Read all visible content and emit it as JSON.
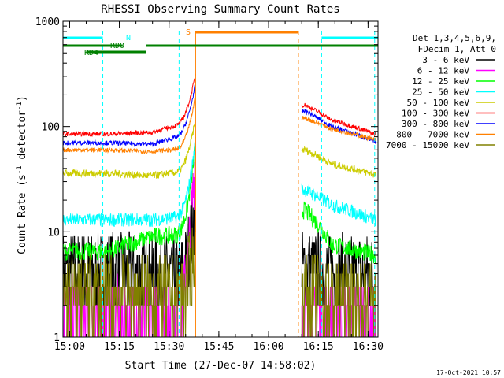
{
  "chart_data": {
    "type": "line",
    "title": "RHESSI Observing Summary Count Rates",
    "xlabel": "Start Time (27-Dec-07 14:58:02)",
    "ylabel_main": "Count Rate (s",
    "ylabel_sup1": "-1",
    "ylabel_mid": " detector",
    "ylabel_sup2": "-1",
    "ylabel_end": ")",
    "y_scale": "log",
    "ylim": [
      1,
      1000
    ],
    "xlim_min": [
      898,
      993
    ],
    "x_ticks": [
      {
        "t": 900,
        "label": "15:00"
      },
      {
        "t": 915,
        "label": "15:15"
      },
      {
        "t": 930,
        "label": "15:30"
      },
      {
        "t": 945,
        "label": "15:45"
      },
      {
        "t": 960,
        "label": "16:00"
      },
      {
        "t": 975,
        "label": "16:15"
      },
      {
        "t": 990,
        "label": "16:30"
      }
    ],
    "y_ticks": [
      {
        "v": 1,
        "label": "1"
      },
      {
        "v": 10,
        "label": "10"
      },
      {
        "v": 100,
        "label": "100"
      },
      {
        "v": 1000,
        "label": "1000"
      }
    ],
    "legend_header": [
      "Det 1,3,4,5,6,9,",
      "FDecim 1, Att 0"
    ],
    "series": [
      {
        "name": "3 - 6 keV",
        "color": "#000000",
        "pre": [
          {
            "t": 912,
            "v": 4.2
          },
          {
            "t": 925,
            "v": 4.0
          },
          {
            "t": 936,
            "v": 3.5
          }
        ],
        "post": [
          {
            "t": 971,
            "v": 4.5
          },
          {
            "t": 979,
            "v": 4.0
          }
        ],
        "noise": 0.9,
        "flare_peak": 20,
        "gap_floor": true
      },
      {
        "name": "6 - 12 keV",
        "color": "#ff00ff",
        "pre": [
          {
            "t": 912,
            "v": 1.6
          },
          {
            "t": 925,
            "v": 1.5
          },
          {
            "t": 936,
            "v": 1.5
          }
        ],
        "post": [
          {
            "t": 971,
            "v": 1.6
          },
          {
            "t": 979,
            "v": 1.5
          }
        ],
        "noise": 0.8,
        "flare_peak": 60,
        "gap_floor": true
      },
      {
        "name": "12 - 25 keV",
        "color": "#00ff00",
        "pre": [
          {
            "t": 912,
            "v": 6.5
          },
          {
            "t": 925,
            "v": 9.0
          },
          {
            "t": 936,
            "v": 9.5
          }
        ],
        "post": [
          {
            "t": 971,
            "v": 16
          },
          {
            "t": 979,
            "v": 7.5
          },
          {
            "t": 992,
            "v": 6.0
          }
        ],
        "noise": 0.2,
        "flare_peak": 70
      },
      {
        "name": "25 - 50 keV",
        "color": "#00ffff",
        "pre": [
          {
            "t": 912,
            "v": 13
          },
          {
            "t": 925,
            "v": 13
          },
          {
            "t": 936,
            "v": 14
          }
        ],
        "post": [
          {
            "t": 971,
            "v": 25
          },
          {
            "t": 979,
            "v": 18
          },
          {
            "t": 992,
            "v": 13
          }
        ],
        "noise": 0.15,
        "flare_peak": 75
      },
      {
        "name": "50 - 100 keV",
        "color": "#cccc00",
        "pre": [
          {
            "t": 912,
            "v": 36
          },
          {
            "t": 925,
            "v": 34
          },
          {
            "t": 936,
            "v": 38
          }
        ],
        "post": [
          {
            "t": 971,
            "v": 60
          },
          {
            "t": 979,
            "v": 44
          },
          {
            "t": 992,
            "v": 35
          }
        ],
        "noise": 0.08,
        "flare_peak": 120
      },
      {
        "name": "100 - 300 keV",
        "color": "#ff0000",
        "pre": [
          {
            "t": 912,
            "v": 85
          },
          {
            "t": 925,
            "v": 88
          },
          {
            "t": 936,
            "v": 110
          }
        ],
        "post": [
          {
            "t": 971,
            "v": 160
          },
          {
            "t": 979,
            "v": 115
          },
          {
            "t": 992,
            "v": 85
          }
        ],
        "noise": 0.05,
        "flare_peak": 320
      },
      {
        "name": "300 - 800 keV",
        "color": "#0000ff",
        "pre": [
          {
            "t": 912,
            "v": 70
          },
          {
            "t": 925,
            "v": 68
          },
          {
            "t": 936,
            "v": 85
          }
        ],
        "post": [
          {
            "t": 971,
            "v": 140
          },
          {
            "t": 979,
            "v": 100
          },
          {
            "t": 992,
            "v": 72
          }
        ],
        "noise": 0.05,
        "flare_peak": 260
      },
      {
        "name": "800 - 7000 keV",
        "color": "#ff8000",
        "pre": [
          {
            "t": 912,
            "v": 60
          },
          {
            "t": 925,
            "v": 58
          },
          {
            "t": 936,
            "v": 62
          }
        ],
        "post": [
          {
            "t": 971,
            "v": 120
          },
          {
            "t": 979,
            "v": 95
          },
          {
            "t": 992,
            "v": 75
          }
        ],
        "noise": 0.05,
        "flare_peak": 200
      },
      {
        "name": "7000 - 15000 keV",
        "color": "#808000",
        "pre": [
          {
            "t": 912,
            "v": 2.5
          },
          {
            "t": 925,
            "v": 2.5
          },
          {
            "t": 936,
            "v": 2.3
          }
        ],
        "post": [
          {
            "t": 971,
            "v": 2.5
          },
          {
            "t": 979,
            "v": 2.3
          }
        ],
        "noise": 0.9,
        "flare_peak": 8,
        "gap_floor": true
      }
    ],
    "data_gap": [
      938,
      970
    ],
    "flare_rise": [
      932,
      938
    ],
    "vlines": [
      {
        "t": 910,
        "color": "#00ffff"
      },
      {
        "t": 933,
        "color": "#00ffff"
      },
      {
        "t": 938,
        "color": "#ff8000",
        "solid": true
      },
      {
        "t": 969,
        "color": "#ff8000"
      },
      {
        "t": 976,
        "color": "#00ffff"
      },
      {
        "t": 992,
        "color": "#00ffff"
      }
    ],
    "flag_bars": [
      {
        "label": "",
        "color": "#00ffff",
        "segments": [
          [
            898,
            910
          ],
          [
            976,
            993
          ]
        ],
        "level": 1
      },
      {
        "label": "N",
        "color": "#00ffff",
        "segments": [],
        "level": 1
      },
      {
        "label": "RD0",
        "color": "#008000",
        "segments": [
          [
            898,
            916
          ],
          [
            923,
            993
          ]
        ],
        "level": 2
      },
      {
        "label": "RD4",
        "color": "#008000",
        "segments": [
          [
            905,
            923
          ]
        ],
        "level": 3
      },
      {
        "label": "S",
        "color": "#ff8000",
        "segments": [
          [
            938,
            969
          ]
        ],
        "level": 0
      }
    ],
    "footer": "17-Oct-2021 10:57"
  }
}
